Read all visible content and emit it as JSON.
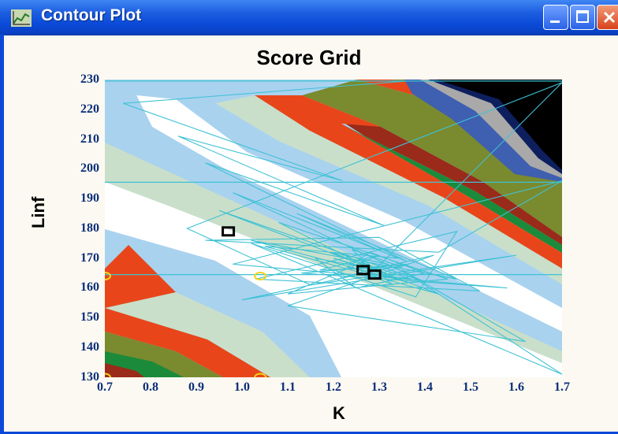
{
  "window": {
    "title": "Contour Plot"
  },
  "titlebar_buttons": [
    "minimize",
    "maximize",
    "close"
  ],
  "colors": {
    "titlebar": "#0b4ad8",
    "tick_labels": "#0c2e7a",
    "trace_lines": "#3ec2d4",
    "markers": "#000000",
    "start_points": "#f3d41c",
    "contour_palette": [
      "#ffffff",
      "#a9d2ef",
      "#c9dfca",
      "#7a8a2f",
      "#e8461a",
      "#9a2a1a",
      "#1b8a3a",
      "#3f5fb0",
      "#0e1f5e",
      "#000000"
    ]
  },
  "chart_data": {
    "type": "heatmap",
    "title": "Score Grid",
    "xlabel": "K",
    "ylabel": "Linf",
    "xlim": [
      0.7,
      1.7
    ],
    "ylim": [
      130,
      230
    ],
    "x_ticks": [
      "0.7",
      "0.8",
      "0.9",
      "1.0",
      "1.1",
      "1.2",
      "1.3",
      "1.4",
      "1.5",
      "1.6",
      "1.7"
    ],
    "y_ticks": [
      "230",
      "220",
      "210",
      "200",
      "190",
      "180",
      "170",
      "160",
      "150",
      "140",
      "130"
    ],
    "markers": [
      {
        "x": 0.97,
        "y": 179
      },
      {
        "x": 1.265,
        "y": 166
      },
      {
        "x": 1.29,
        "y": 164.5
      }
    ],
    "start_points": [
      {
        "x": 0.7,
        "y": 164
      },
      {
        "x": 1.04,
        "y": 164
      },
      {
        "x": 0.7,
        "y": 130
      },
      {
        "x": 1.04,
        "y": 130
      }
    ],
    "reference_lines": {
      "horizontal": [
        164.5,
        195.5,
        229.5
      ]
    },
    "trace_path": [
      [
        0.7,
        229.5
      ],
      [
        1.36,
        229.5
      ],
      [
        0.74,
        222
      ],
      [
        1.22,
        196
      ],
      [
        0.86,
        211
      ],
      [
        1.31,
        181
      ],
      [
        0.92,
        202
      ],
      [
        1.36,
        169
      ],
      [
        0.98,
        192
      ],
      [
        1.4,
        162
      ],
      [
        0.95,
        186
      ],
      [
        1.43,
        158
      ],
      [
        1.05,
        174
      ],
      [
        1.34,
        170
      ],
      [
        1.12,
        185
      ],
      [
        1.47,
        163
      ],
      [
        1.02,
        176
      ],
      [
        1.36,
        162
      ],
      [
        1.2,
        170
      ],
      [
        1.29,
        166
      ],
      [
        1.08,
        182
      ],
      [
        1.45,
        163
      ],
      [
        1.1,
        158
      ],
      [
        1.3,
        171
      ],
      [
        1.17,
        166
      ],
      [
        1.35,
        167
      ],
      [
        1.24,
        173
      ],
      [
        1.33,
        161
      ],
      [
        1.27,
        165
      ],
      [
        1.37,
        163
      ],
      [
        1.19,
        172
      ],
      [
        1.32,
        168
      ],
      [
        1.21,
        163
      ],
      [
        1.3,
        166
      ],
      [
        1.16,
        170
      ],
      [
        1.25,
        160
      ],
      [
        1.4,
        165
      ],
      [
        1.28,
        172
      ],
      [
        1.23,
        167
      ],
      [
        1.34,
        163
      ],
      [
        1.26,
        169
      ],
      [
        1.29,
        166
      ],
      [
        1.7,
        229
      ],
      [
        0.88,
        180
      ],
      [
        1.15,
        161
      ],
      [
        1.6,
        171
      ],
      [
        1.0,
        156
      ],
      [
        1.36,
        168
      ],
      [
        1.13,
        165
      ],
      [
        1.58,
        160
      ],
      [
        0.98,
        168
      ],
      [
        1.7,
        196
      ],
      [
        1.43,
        172
      ],
      [
        0.92,
        176
      ],
      [
        1.3,
        177
      ],
      [
        1.52,
        159
      ],
      [
        1.03,
        163
      ],
      [
        1.47,
        179
      ],
      [
        1.38,
        157
      ],
      [
        1.02,
        175
      ],
      [
        1.7,
        131
      ],
      [
        1.35,
        166
      ],
      [
        1.62,
        142
      ],
      [
        1.1,
        154
      ],
      [
        1.42,
        171
      ],
      [
        1.25,
        165
      ]
    ]
  }
}
